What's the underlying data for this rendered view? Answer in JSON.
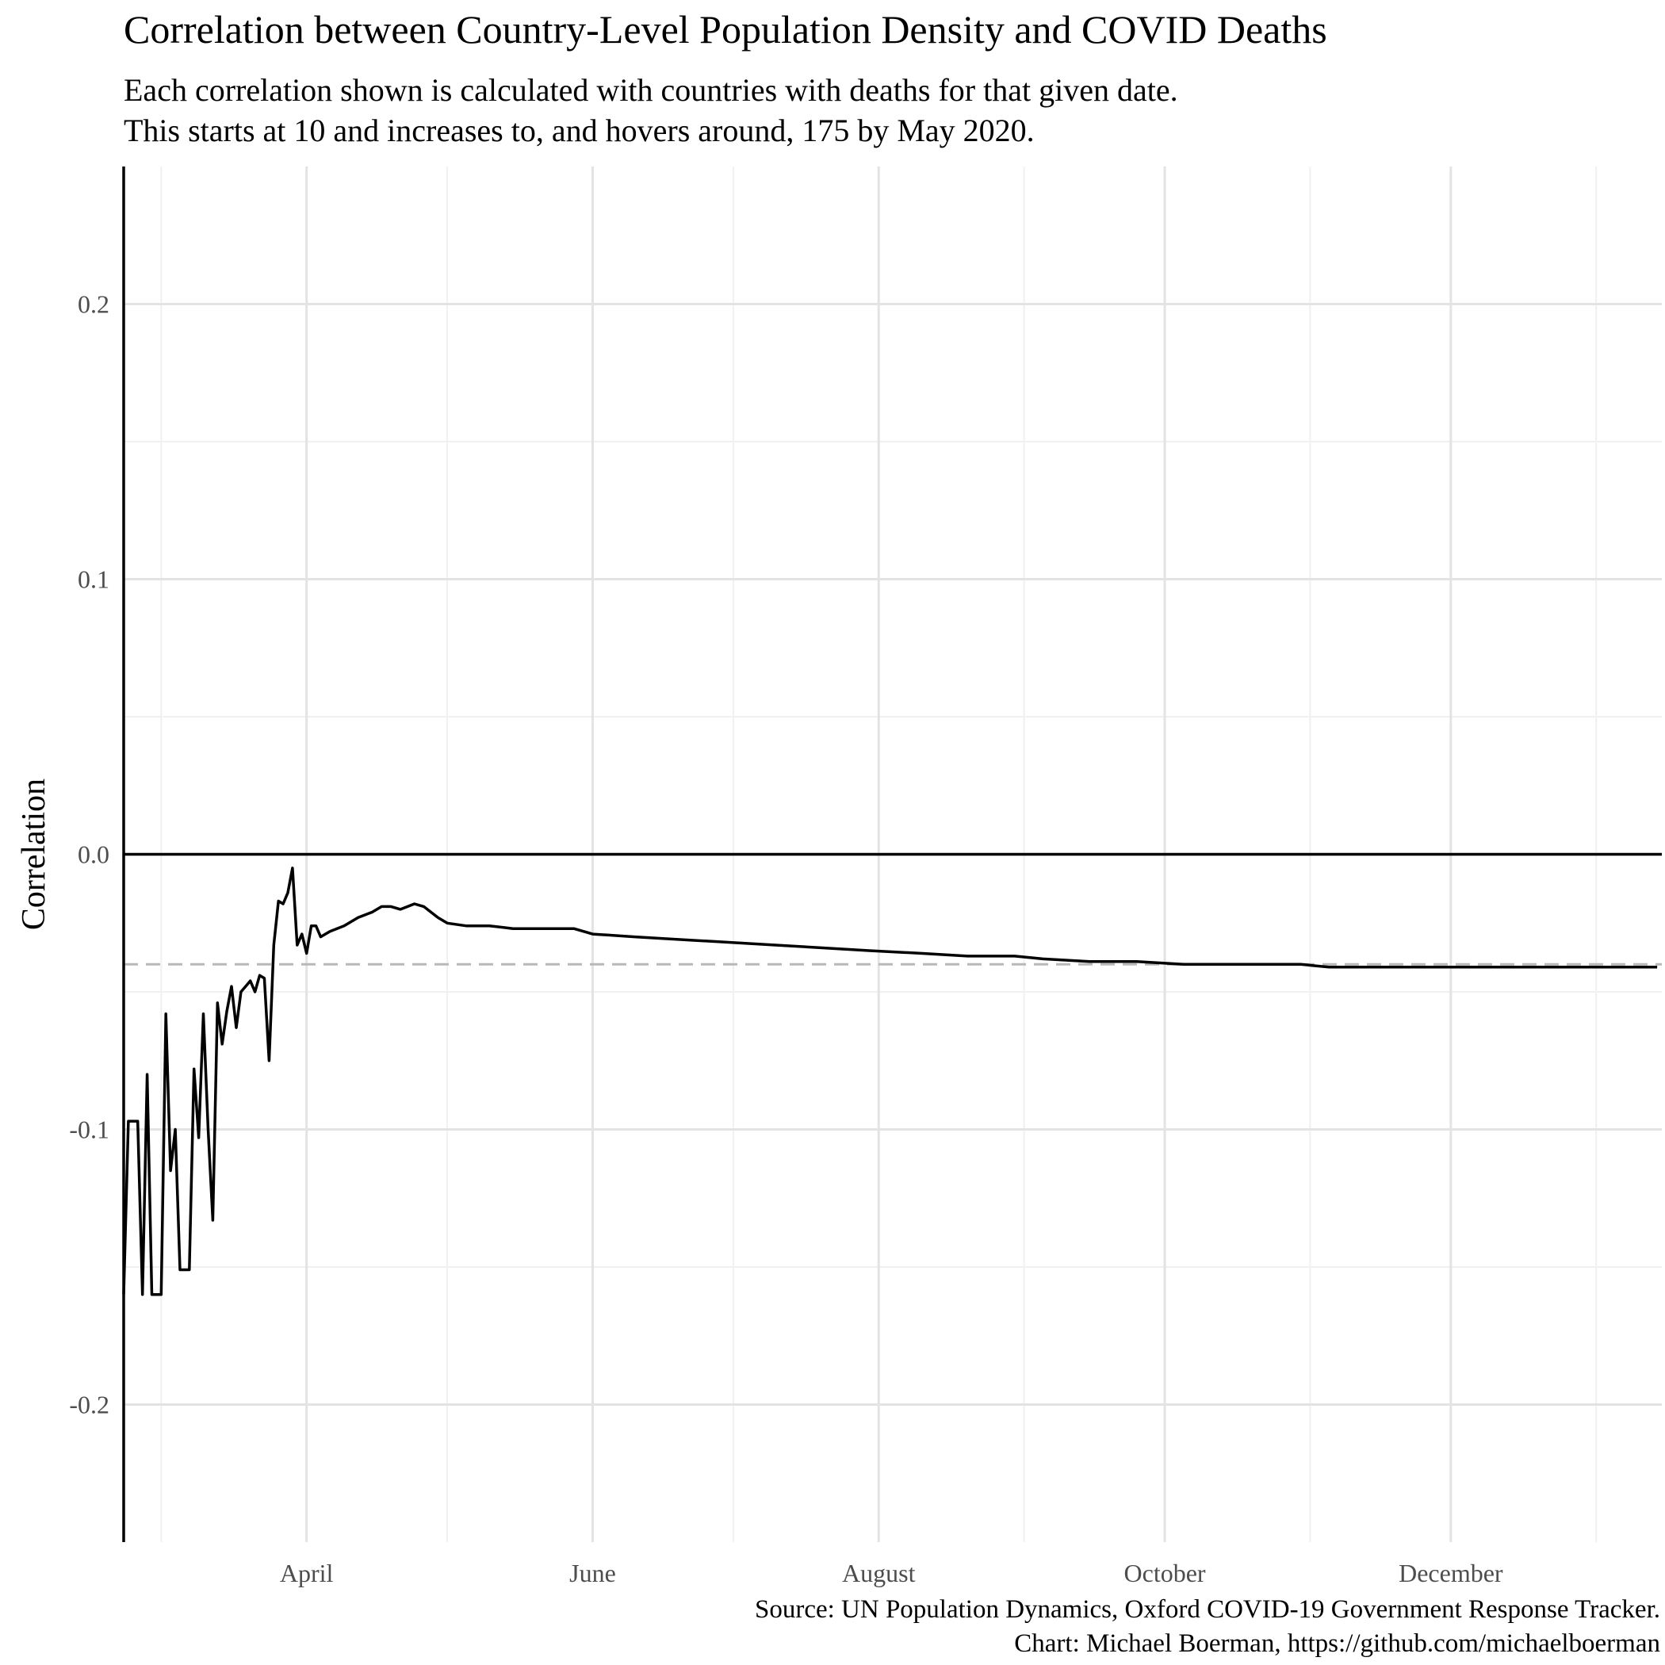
{
  "chart_data": {
    "type": "line",
    "title": "Correlation between Country-Level Population Density and COVID Deaths",
    "subtitle_lines": [
      "Each correlation shown is calculated with countries with deaths for that given date.",
      "This starts at 10 and increases to, and hovers around, 175 by May 2020."
    ],
    "caption_lines": [
      "Source: UN Population Dynamics, Oxford COVID-19 Government Response Tracker.",
      "Chart: Michael Boerman, https://github.com/michaelboerman"
    ],
    "xlabel": "",
    "ylabel": "Correlation",
    "x_axis_type": "date",
    "xlim": [
      "2020-02-22",
      "2021-01-15"
    ],
    "ylim": [
      -0.25,
      0.25
    ],
    "x_ticks": [
      {
        "date": "2020-04-01",
        "label": "April"
      },
      {
        "date": "2020-06-01",
        "label": "June"
      },
      {
        "date": "2020-08-01",
        "label": "August"
      },
      {
        "date": "2020-10-01",
        "label": "October"
      },
      {
        "date": "2020-12-01",
        "label": "December"
      }
    ],
    "x_minor_gridlines": [
      "2020-03-01",
      "2020-05-01",
      "2020-07-01",
      "2020-09-01",
      "2020-11-01",
      "2021-01-01"
    ],
    "y_ticks": [
      {
        "value": 0.2,
        "label": "0.2"
      },
      {
        "value": 0.1,
        "label": "0.1"
      },
      {
        "value": 0.0,
        "label": "0.0"
      },
      {
        "value": -0.1,
        "label": "-0.1"
      },
      {
        "value": -0.2,
        "label": "-0.2"
      }
    ],
    "y_minor_gridlines": [
      0.15,
      0.05,
      -0.05,
      -0.15
    ],
    "grid": true,
    "reference_lines": [
      {
        "value": 0.0,
        "style": "solid",
        "color": "#000000"
      },
      {
        "value": -0.04,
        "style": "dashed",
        "color": "#b8b8b8"
      }
    ],
    "series": [
      {
        "color": "#000000",
        "points": [
          [
            "2020-02-22",
            -0.16
          ],
          [
            "2020-02-23",
            -0.097
          ],
          [
            "2020-02-24",
            -0.097
          ],
          [
            "2020-02-25",
            -0.097
          ],
          [
            "2020-02-26",
            -0.16
          ],
          [
            "2020-02-27",
            -0.08
          ],
          [
            "2020-02-28",
            -0.16
          ],
          [
            "2020-02-29",
            -0.16
          ],
          [
            "2020-03-01",
            -0.16
          ],
          [
            "2020-03-02",
            -0.058
          ],
          [
            "2020-03-03",
            -0.115
          ],
          [
            "2020-03-04",
            -0.1
          ],
          [
            "2020-03-05",
            -0.151
          ],
          [
            "2020-03-06",
            -0.151
          ],
          [
            "2020-03-07",
            -0.151
          ],
          [
            "2020-03-08",
            -0.078
          ],
          [
            "2020-03-09",
            -0.103
          ],
          [
            "2020-03-10",
            -0.058
          ],
          [
            "2020-03-11",
            -0.1
          ],
          [
            "2020-03-12",
            -0.133
          ],
          [
            "2020-03-13",
            -0.054
          ],
          [
            "2020-03-14",
            -0.069
          ],
          [
            "2020-03-15",
            -0.057
          ],
          [
            "2020-03-16",
            -0.048
          ],
          [
            "2020-03-17",
            -0.063
          ],
          [
            "2020-03-18",
            -0.05
          ],
          [
            "2020-03-19",
            -0.048
          ],
          [
            "2020-03-20",
            -0.046
          ],
          [
            "2020-03-21",
            -0.05
          ],
          [
            "2020-03-22",
            -0.044
          ],
          [
            "2020-03-23",
            -0.045
          ],
          [
            "2020-03-24",
            -0.075
          ],
          [
            "2020-03-25",
            -0.033
          ],
          [
            "2020-03-26",
            -0.017
          ],
          [
            "2020-03-27",
            -0.018
          ],
          [
            "2020-03-28",
            -0.014
          ],
          [
            "2020-03-29",
            -0.005
          ],
          [
            "2020-03-30",
            -0.033
          ],
          [
            "2020-03-31",
            -0.029
          ],
          [
            "2020-04-01",
            -0.036
          ],
          [
            "2020-04-02",
            -0.026
          ],
          [
            "2020-04-03",
            -0.026
          ],
          [
            "2020-04-04",
            -0.03
          ],
          [
            "2020-04-06",
            -0.028
          ],
          [
            "2020-04-09",
            -0.026
          ],
          [
            "2020-04-12",
            -0.023
          ],
          [
            "2020-04-15",
            -0.021
          ],
          [
            "2020-04-17",
            -0.019
          ],
          [
            "2020-04-19",
            -0.019
          ],
          [
            "2020-04-21",
            -0.02
          ],
          [
            "2020-04-24",
            -0.018
          ],
          [
            "2020-04-26",
            -0.019
          ],
          [
            "2020-04-29",
            -0.023
          ],
          [
            "2020-05-01",
            -0.025
          ],
          [
            "2020-05-05",
            -0.026
          ],
          [
            "2020-05-10",
            -0.026
          ],
          [
            "2020-05-15",
            -0.027
          ],
          [
            "2020-05-20",
            -0.027
          ],
          [
            "2020-05-28",
            -0.027
          ],
          [
            "2020-06-01",
            -0.029
          ],
          [
            "2020-06-10",
            -0.03
          ],
          [
            "2020-06-20",
            -0.031
          ],
          [
            "2020-06-30",
            -0.032
          ],
          [
            "2020-07-10",
            -0.033
          ],
          [
            "2020-07-20",
            -0.034
          ],
          [
            "2020-07-30",
            -0.035
          ],
          [
            "2020-08-10",
            -0.036
          ],
          [
            "2020-08-20",
            -0.037
          ],
          [
            "2020-08-30",
            -0.037
          ],
          [
            "2020-09-05",
            -0.038
          ],
          [
            "2020-09-15",
            -0.039
          ],
          [
            "2020-09-25",
            -0.039
          ],
          [
            "2020-10-05",
            -0.04
          ],
          [
            "2020-10-15",
            -0.04
          ],
          [
            "2020-10-20",
            -0.04
          ],
          [
            "2020-10-25",
            -0.04
          ],
          [
            "2020-10-30",
            -0.04
          ],
          [
            "2020-11-05",
            -0.041
          ],
          [
            "2020-11-10",
            -0.041
          ],
          [
            "2020-11-15",
            -0.041
          ],
          [
            "2020-11-20",
            -0.041
          ],
          [
            "2020-11-25",
            -0.041
          ],
          [
            "2020-11-30",
            -0.041
          ],
          [
            "2020-12-05",
            -0.041
          ],
          [
            "2020-12-10",
            -0.041
          ],
          [
            "2020-12-15",
            -0.041
          ],
          [
            "2020-12-20",
            -0.041
          ],
          [
            "2020-12-25",
            -0.041
          ],
          [
            "2020-12-30",
            -0.041
          ],
          [
            "2021-01-04",
            -0.041
          ],
          [
            "2021-01-09",
            -0.041
          ],
          [
            "2021-01-14",
            -0.041
          ]
        ]
      }
    ]
  }
}
